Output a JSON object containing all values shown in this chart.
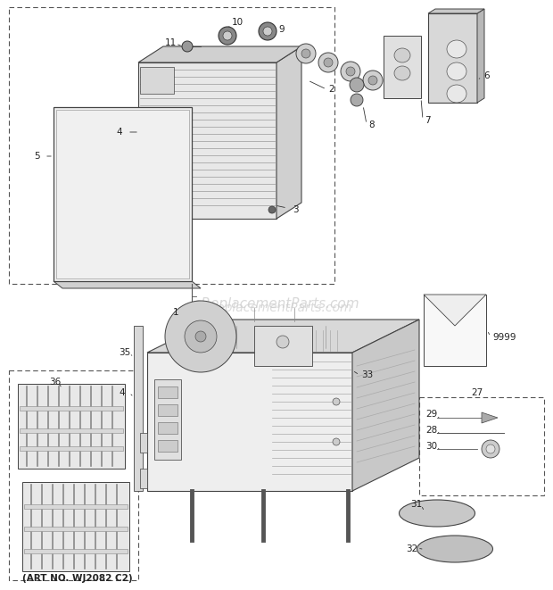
{
  "watermark": "eReplacementParts.com",
  "footer": "(ART NO. WJ2082 C2)",
  "bg_color": "#ffffff",
  "fig_width": 6.2,
  "fig_height": 6.61,
  "dpi": 100
}
